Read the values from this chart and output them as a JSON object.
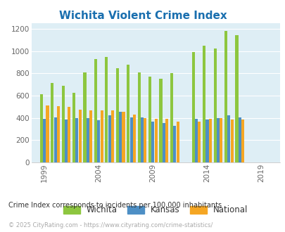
{
  "title": "Wichita Violent Crime Index",
  "title_color": "#1a6faf",
  "subtitle": "Crime Index corresponds to incidents per 100,000 inhabitants",
  "footer": "© 2025 CityRating.com - https://www.cityrating.com/crime-statistics/",
  "years": [
    1999,
    2000,
    2001,
    2002,
    2003,
    2004,
    2005,
    2006,
    2007,
    2008,
    2009,
    2010,
    2011,
    2012,
    2013,
    2014,
    2015,
    2016,
    2017,
    2018,
    2019,
    2020
  ],
  "wichita": [
    610,
    715,
    685,
    625,
    810,
    930,
    950,
    845,
    875,
    805,
    770,
    750,
    800,
    null,
    990,
    1050,
    1020,
    1180,
    1140,
    null,
    null,
    null
  ],
  "kansas": [
    390,
    405,
    385,
    395,
    400,
    380,
    425,
    455,
    405,
    405,
    365,
    355,
    330,
    null,
    390,
    385,
    400,
    425,
    405,
    null,
    null,
    null
  ],
  "national": [
    510,
    505,
    500,
    475,
    465,
    465,
    470,
    455,
    430,
    400,
    390,
    390,
    365,
    null,
    365,
    390,
    395,
    385,
    385,
    null,
    null,
    null
  ],
  "bar_colors": [
    "#8dc63f",
    "#4d8fc5",
    "#f5a623"
  ],
  "bg_color": "#deeef5",
  "ylim": [
    0,
    1250
  ],
  "yticks": [
    0,
    200,
    400,
    600,
    800,
    1000,
    1200
  ],
  "xtick_years": [
    1999,
    2004,
    2009,
    2014,
    2019
  ],
  "legend_labels": [
    "Wichita",
    "Kansas",
    "National"
  ],
  "subtitle_color": "#333333",
  "footer_color": "#aaaaaa",
  "fig_width": 4.06,
  "fig_height": 3.3,
  "dpi": 100
}
